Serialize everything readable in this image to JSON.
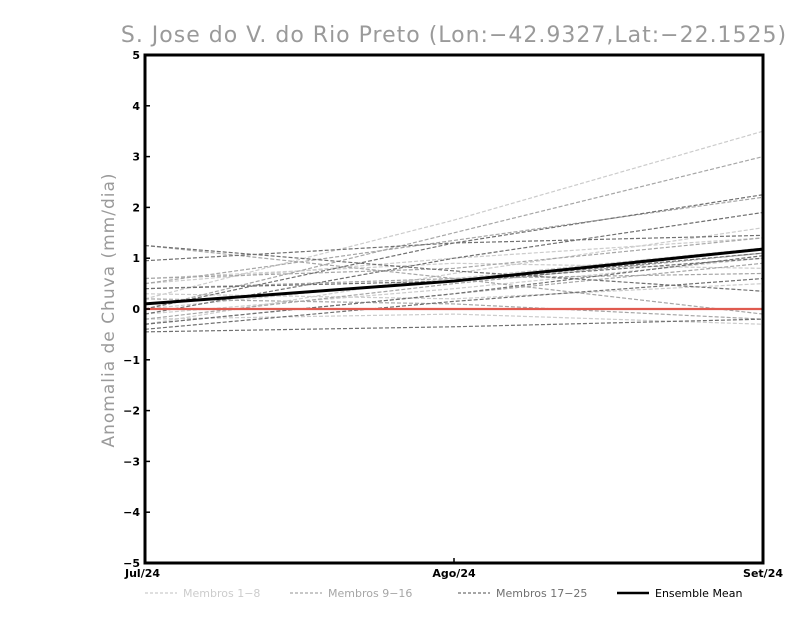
{
  "chart_data": {
    "type": "line",
    "title": "S. Jose do V. do Rio Preto (Lon:−42.9327,Lat:−22.1525)",
    "xlabel": "",
    "ylabel": "Anomalia de Chuva (mm/dia)",
    "categories": [
      "Jul/24",
      "Ago/24",
      "Set/24"
    ],
    "ylim": [
      -5,
      5
    ],
    "yticks": [
      "−5",
      "−4",
      "−3",
      "−2",
      "−1",
      "0",
      "1",
      "2",
      "3",
      "4",
      "5"
    ],
    "grid": false,
    "legend_position": "bottom",
    "legend": [
      {
        "label": "Membros 1−8",
        "color": "#cccccc",
        "style": "dashed"
      },
      {
        "label": "Membros 9−16",
        "color": "#a6a6a6",
        "style": "dashed"
      },
      {
        "label": "Membros 17−25",
        "color": "#707070",
        "style": "dashed"
      },
      {
        "label": "Ensemble Mean",
        "color": "#000000",
        "style": "solid"
      }
    ],
    "member_groups": [
      {
        "name": "Membros 1−8",
        "color": "#cccccc",
        "series": [
          [
            0.2,
            1.75,
            3.5
          ],
          [
            0.5,
            1.0,
            1.4
          ],
          [
            -0.3,
            0.7,
            1.6
          ],
          [
            0.0,
            0.6,
            1.2
          ],
          [
            -0.2,
            -0.1,
            -0.3
          ],
          [
            0.6,
            0.9,
            0.8
          ],
          [
            -0.1,
            0.4,
            1.0
          ],
          [
            0.3,
            0.2,
            0.5
          ]
        ]
      },
      {
        "name": "Membros 9−16",
        "color": "#a6a6a6",
        "series": [
          [
            0.0,
            1.5,
            3.0
          ],
          [
            0.5,
            1.35,
            2.2
          ],
          [
            1.25,
            0.6,
            -0.1
          ],
          [
            0.2,
            0.1,
            -0.2
          ],
          [
            -0.2,
            0.5,
            1.1
          ],
          [
            0.6,
            0.8,
            1.4
          ],
          [
            -0.3,
            0.3,
            0.9
          ],
          [
            0.4,
            0.6,
            0.7
          ]
        ]
      },
      {
        "name": "Membros 17−25",
        "color": "#707070",
        "series": [
          [
            0.95,
            1.3,
            2.25
          ],
          [
            -0.1,
            1.0,
            1.9
          ],
          [
            0.4,
            0.55,
            1.1
          ],
          [
            -0.45,
            -0.35,
            -0.2
          ],
          [
            1.25,
            0.75,
            0.35
          ],
          [
            -0.4,
            0.15,
            0.6
          ],
          [
            0.1,
            0.55,
            1.0
          ],
          [
            0.0,
            1.3,
            1.45
          ],
          [
            -0.3,
            0.3,
            1.05
          ]
        ]
      }
    ],
    "series": [
      {
        "name": "Ensemble Mean",
        "values": [
          0.1,
          0.55,
          1.18
        ]
      }
    ],
    "reference_line": {
      "y": 0,
      "color": "#e05a4f"
    }
  }
}
